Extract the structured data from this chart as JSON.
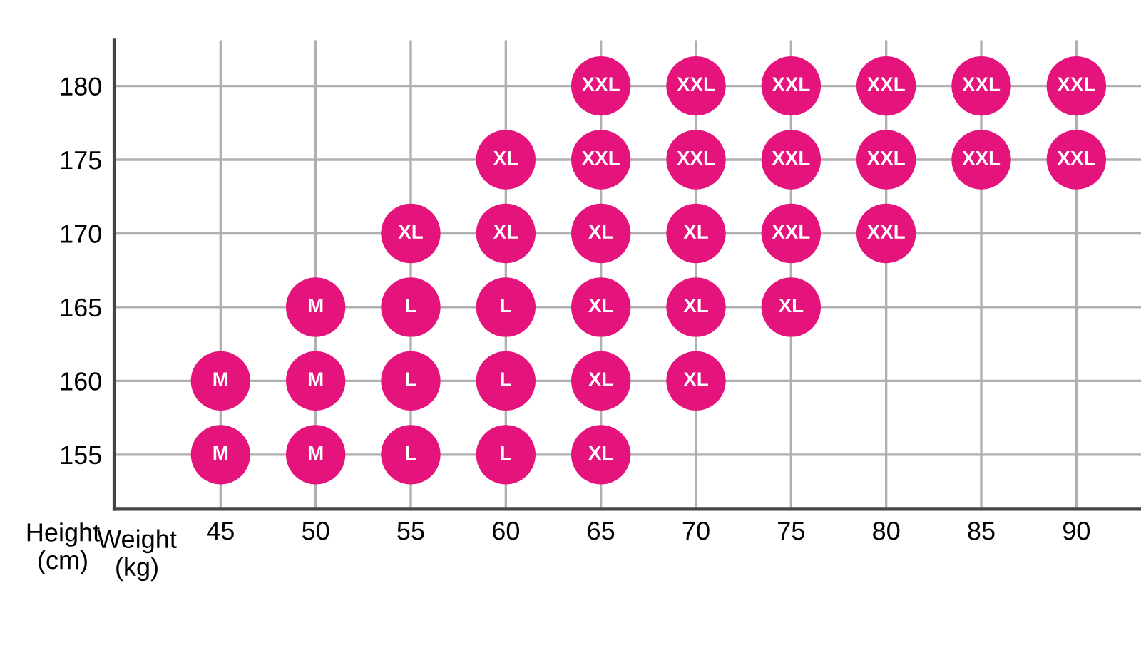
{
  "chart_data": {
    "type": "scatter",
    "xlabel": "Weight\n(kg)",
    "ylabel": "Height\n(cm)",
    "xlim": [
      39.4,
      93.4
    ],
    "ylim": [
      151.3,
      183.1
    ],
    "xticks": [
      45,
      50,
      55,
      60,
      65,
      70,
      75,
      80,
      85,
      90
    ],
    "yticks": [
      155,
      160,
      165,
      170,
      175,
      180
    ],
    "grid": true,
    "marker": "circle",
    "series": [
      {
        "color": "#e4147c",
        "x": [
          65,
          70,
          75,
          80,
          85,
          90,
          60,
          65,
          70,
          75,
          80,
          85,
          90,
          55,
          60,
          65,
          70,
          75,
          80,
          50,
          55,
          60,
          65,
          70,
          75,
          45,
          50,
          55,
          60,
          65,
          70,
          45,
          50,
          55,
          60,
          65
        ],
        "values": [
          180,
          180,
          180,
          180,
          180,
          180,
          175,
          175,
          175,
          175,
          175,
          175,
          175,
          170,
          170,
          170,
          170,
          170,
          170,
          165,
          165,
          165,
          165,
          165,
          165,
          160,
          160,
          160,
          160,
          160,
          160,
          155,
          155,
          155,
          155,
          155
        ],
        "value_labels": [
          "XXL",
          "XXL",
          "XXL",
          "XXL",
          "XXL",
          "XXL",
          "XL",
          "XXL",
          "XXL",
          "XXL",
          "XXL",
          "XXL",
          "XXL",
          "XL",
          "XL",
          "XL",
          "XL",
          "XXL",
          "XXL",
          "M",
          "L",
          "L",
          "XL",
          "XL",
          "XL",
          "M",
          "M",
          "L",
          "L",
          "XL",
          "XL",
          "M",
          "M",
          "L",
          "L",
          "XL"
        ]
      }
    ]
  }
}
